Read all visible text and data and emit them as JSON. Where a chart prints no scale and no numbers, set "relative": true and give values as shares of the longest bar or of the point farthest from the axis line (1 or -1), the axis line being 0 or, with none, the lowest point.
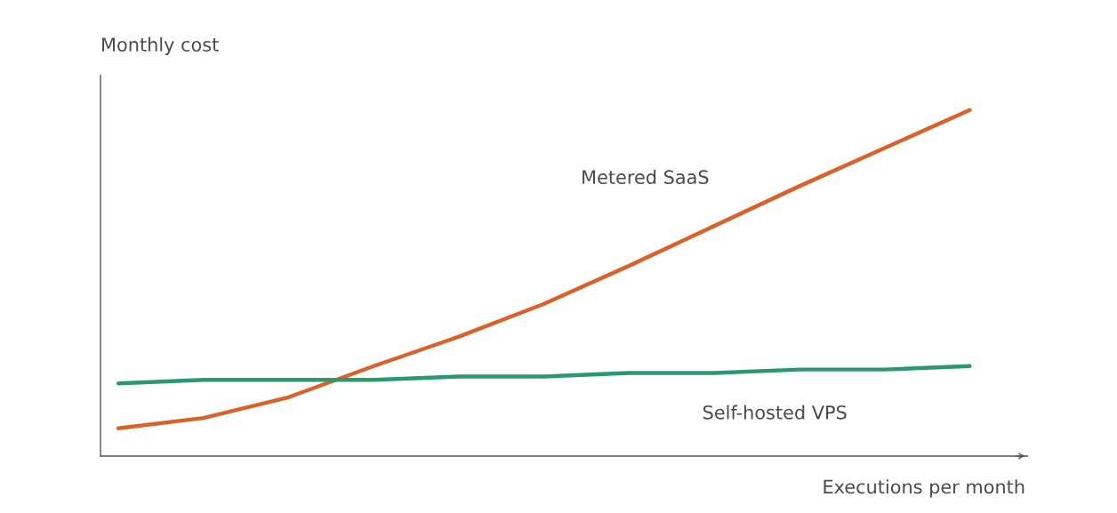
{
  "chart_data": {
    "type": "line",
    "relative": true,
    "xlabel": "Executions per month",
    "ylabel": "Monthly cost",
    "legend": false,
    "categories": [
      null,
      null,
      null,
      null,
      null,
      null,
      null,
      null,
      null,
      null,
      null
    ],
    "series": [
      {
        "name": "Metered SaaS",
        "color": "#d9622b",
        "values": [
          0.08,
          0.11,
          0.17,
          0.26,
          0.345,
          0.44,
          0.55,
          0.665,
          0.78,
          0.89,
          1
        ]
      },
      {
        "name": "Self-hosted VPS",
        "color": "#2a9a6e",
        "values": [
          0.21,
          0.22,
          0.22,
          0.22,
          0.23,
          0.23,
          0.24,
          0.24,
          0.25,
          0.25,
          0.26
        ]
      }
    ]
  }
}
